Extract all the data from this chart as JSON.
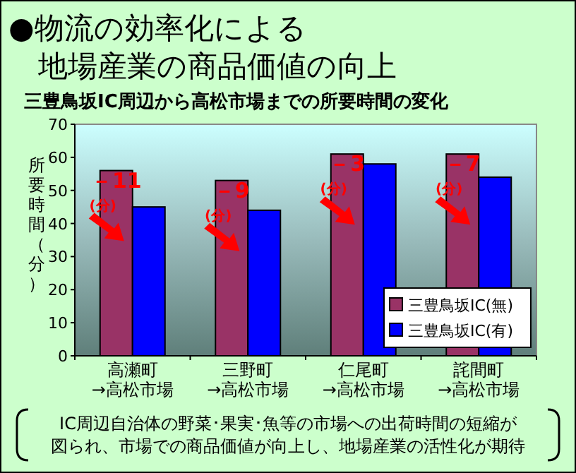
{
  "chart_data": {
    "type": "bar",
    "title": "●物流の効率化による地場産業の商品価値の向上",
    "subtitle": "三豊鳥坂IC周辺から高松市場までの所要時間の変化",
    "ylabel": "所要時間（分）",
    "categories": [
      "高瀬町\n→高松市場",
      "三野町\n→高松市場",
      "仁尾町\n→高松市場",
      "詫間町\n→高松市場"
    ],
    "series": [
      {
        "name": "三豊鳥坂IC(無)",
        "color": "#993366",
        "values": [
          56,
          53,
          61,
          61
        ]
      },
      {
        "name": "三豊鳥坂IC(有)",
        "color": "#0000ff",
        "values": [
          45,
          44,
          58,
          54
        ]
      }
    ],
    "ylim": [
      0,
      70
    ],
    "yticks": [
      0,
      10,
      20,
      30,
      40,
      50,
      60,
      70
    ],
    "legend": "bottom right",
    "annotations": [
      {
        "text": "－11\n(分)",
        "x": "高瀬町\n→高松市場",
        "y": 56
      },
      {
        "text": "－9\n(分)",
        "x": "三野町\n→高松市場",
        "y": 53
      },
      {
        "text": "－3\n(分)",
        "x": "仁尾町\n→高松市場",
        "y": 61
      },
      {
        "text": "－7\n(分)",
        "x": "詫間町\n→高松市場",
        "y": 61
      },
      "IC周辺自治体の野菜･果実･魚等の市場への出荷時間の短縮が図られ、市場での商品価値が向上し、地場産業の活性化が期待"
    ]
  }
}
